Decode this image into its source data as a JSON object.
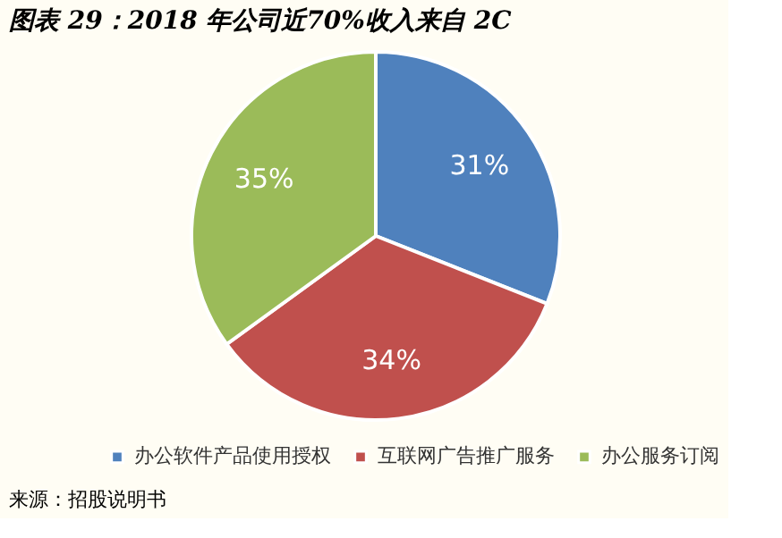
{
  "chart_data": {
    "type": "pie",
    "title": "图表 29：2018 年公司近70%收入来自 2C",
    "categories": [
      "办公软件产品使用授权",
      "互联网广告推广服务",
      "办公服务订阅"
    ],
    "values": [
      31,
      34,
      35
    ],
    "colors": [
      "#4f81bd",
      "#c0504d",
      "#9bbb59"
    ],
    "value_labels": [
      "31%",
      "34%",
      "35%"
    ],
    "legend": "bottom",
    "annotations": [
      "来源：招股说明书"
    ]
  }
}
